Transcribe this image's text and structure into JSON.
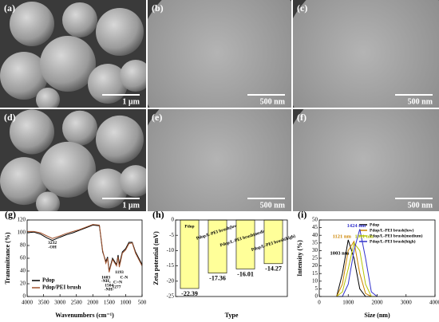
{
  "panels": [
    {
      "label": "(a)",
      "scale": "1 µm"
    },
    {
      "label": "(b)",
      "scale": "500 nm"
    },
    {
      "label": "(c)",
      "scale": "500 nm"
    },
    {
      "label": "(d)",
      "scale": "1 µm"
    },
    {
      "label": "(e)",
      "scale": "500 nm"
    },
    {
      "label": "(f)",
      "scale": "500 nm"
    }
  ],
  "chart_data": [
    {
      "type": "line",
      "panel_label": "(g)",
      "xlabel": "Wavenumbers (cm⁻¹)",
      "ylabel": "Transmittance (%)",
      "x": [
        4000,
        3800,
        3600,
        3400,
        3232,
        3000,
        2800,
        2600,
        2400,
        2200,
        2000,
        1800,
        1700,
        1603,
        1550,
        1504,
        1400,
        1277,
        1230,
        1193,
        1100,
        1000,
        900,
        800,
        700,
        600,
        500
      ],
      "series": [
        {
          "name": "Pdop",
          "color": "#000000",
          "values": [
            100,
            101,
            98,
            92,
            88,
            93,
            97,
            100,
            104,
            108,
            112,
            111,
            70,
            55,
            62,
            40,
            60,
            50,
            65,
            50,
            70,
            75,
            85,
            85,
            70,
            60,
            50
          ]
        },
        {
          "name": "Pdop/PEI brush",
          "color": "#a0522d",
          "values": [
            102,
            102,
            100,
            95,
            91,
            95,
            99,
            102,
            105,
            109,
            113,
            112,
            72,
            52,
            60,
            38,
            58,
            48,
            62,
            46,
            68,
            73,
            83,
            84,
            68,
            58,
            48
          ]
        }
      ],
      "annotations": [
        "3232",
        "-OH",
        "1603",
        "-NH₂",
        "1504",
        "-NH-",
        "1277",
        "C=N",
        "1193",
        "C-N"
      ],
      "xlim": [
        4000,
        500
      ],
      "xticks": [
        4000,
        3500,
        3000,
        2500,
        2000,
        1500,
        1000,
        500
      ],
      "ylim": [
        0,
        120
      ],
      "yticks": [
        0,
        20,
        40,
        60,
        80,
        100,
        120
      ],
      "legend": "lower left"
    },
    {
      "type": "bar",
      "panel_label": "(h)",
      "xlabel": "Type",
      "ylabel": "Zeta potential (mV)",
      "categories": [
        "Pdop",
        "Pdop/L-PEI brush(low)",
        "Pdop/L-PEI brush(medium)",
        "Pdop/L-PEI brush(high)"
      ],
      "values": [
        -22.39,
        -17.36,
        -16.01,
        -14.27
      ],
      "color": "#ffff99",
      "ylim": [
        -25,
        0
      ],
      "yticks": [
        0,
        -5,
        -10,
        -15,
        -20,
        -25
      ]
    },
    {
      "type": "line",
      "panel_label": "(i)",
      "xlabel": "Size (nm)",
      "ylabel": "Intensity (%)",
      "x": [
        600,
        800,
        1000,
        1200,
        1400,
        1600,
        1800,
        2000
      ],
      "series": [
        {
          "name": "Pdop",
          "color": "#000000",
          "values": [
            0,
            15,
            37,
            25,
            5,
            0,
            0,
            0
          ]
        },
        {
          "name": "Pdop/L-PEI brush(low)",
          "color": "#cc8400",
          "values": [
            0,
            8,
            30,
            36,
            15,
            2,
            0,
            0
          ]
        },
        {
          "name": "Pdop/L-PEI brush(medium)",
          "color": "#b5c400",
          "values": [
            0,
            3,
            18,
            35,
            30,
            8,
            0,
            0
          ]
        },
        {
          "name": "Pdop/L-PEI brush(high)",
          "color": "#3333cc",
          "values": [
            0,
            0,
            8,
            30,
            44,
            25,
            3,
            0
          ]
        }
      ],
      "annotations": [
        "1003 nm",
        "1121 nm",
        "1311 nm",
        "1424 nm"
      ],
      "xlim": [
        0,
        4000
      ],
      "xticks": [
        0,
        1000,
        2000,
        3000,
        4000
      ],
      "ylim": [
        0,
        50
      ],
      "yticks": [
        0,
        5,
        10,
        15,
        20,
        25,
        30,
        35,
        40,
        45,
        50
      ],
      "legend": "upper right"
    }
  ]
}
